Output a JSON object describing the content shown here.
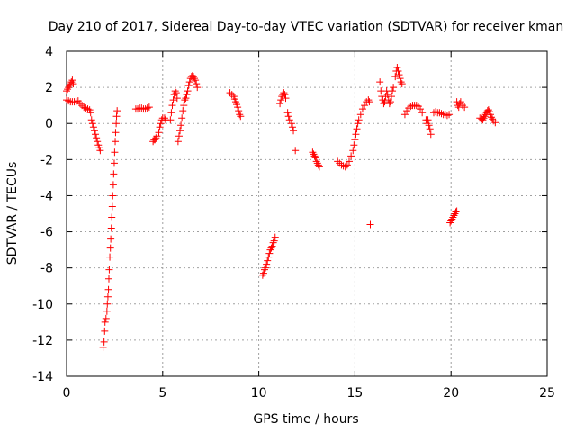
{
  "chart_data": {
    "type": "scatter",
    "title": "Day 210 of 2017, Sidereal Day-to-day VTEC variation (SDTVAR) for receiver kman",
    "xlabel": "GPS time / hours",
    "ylabel": "SDTVAR / TECUs",
    "xlim": [
      0,
      25
    ],
    "ylim": [
      -14,
      4
    ],
    "xticks": [
      0,
      5,
      10,
      15,
      20,
      25
    ],
    "yticks": [
      -14,
      -12,
      -10,
      -8,
      -6,
      -4,
      -2,
      0,
      2,
      4
    ],
    "grid": true,
    "marker": "+",
    "color": "#ff0000",
    "series": [
      {
        "name": "SDTVAR",
        "points": [
          [
            0.0,
            1.8
          ],
          [
            0.05,
            1.9
          ],
          [
            0.1,
            2.0
          ],
          [
            0.15,
            2.1
          ],
          [
            0.2,
            2.2
          ],
          [
            0.25,
            2.3
          ],
          [
            0.3,
            2.4
          ],
          [
            0.35,
            2.2
          ],
          [
            0.0,
            1.3
          ],
          [
            0.1,
            1.25
          ],
          [
            0.2,
            1.2
          ],
          [
            0.3,
            1.2
          ],
          [
            0.4,
            1.2
          ],
          [
            0.5,
            1.2
          ],
          [
            0.6,
            1.25
          ],
          [
            0.7,
            1.1
          ],
          [
            0.8,
            1.0
          ],
          [
            0.9,
            0.9
          ],
          [
            1.0,
            0.85
          ],
          [
            1.1,
            0.8
          ],
          [
            1.2,
            0.75
          ],
          [
            1.25,
            0.6
          ],
          [
            1.3,
            0.2
          ],
          [
            1.35,
            0.0
          ],
          [
            1.4,
            -0.2
          ],
          [
            1.45,
            -0.4
          ],
          [
            1.5,
            -0.6
          ],
          [
            1.55,
            -0.8
          ],
          [
            1.6,
            -1.0
          ],
          [
            1.65,
            -1.2
          ],
          [
            1.7,
            -1.35
          ],
          [
            1.75,
            -1.5
          ],
          [
            1.9,
            -12.4
          ],
          [
            1.95,
            -12.1
          ],
          [
            1.98,
            -11.5
          ],
          [
            2.0,
            -11.0
          ],
          [
            2.05,
            -10.8
          ],
          [
            2.1,
            -10.4
          ],
          [
            2.12,
            -10.0
          ],
          [
            2.15,
            -9.6
          ],
          [
            2.18,
            -9.2
          ],
          [
            2.2,
            -8.6
          ],
          [
            2.22,
            -8.1
          ],
          [
            2.25,
            -7.4
          ],
          [
            2.28,
            -6.9
          ],
          [
            2.3,
            -6.4
          ],
          [
            2.33,
            -5.8
          ],
          [
            2.35,
            -5.2
          ],
          [
            2.38,
            -4.6
          ],
          [
            2.4,
            -4.0
          ],
          [
            2.43,
            -3.4
          ],
          [
            2.45,
            -2.8
          ],
          [
            2.48,
            -2.2
          ],
          [
            2.5,
            -1.6
          ],
          [
            2.53,
            -1.0
          ],
          [
            2.55,
            -0.5
          ],
          [
            2.58,
            0.0
          ],
          [
            2.6,
            0.4
          ],
          [
            2.63,
            0.7
          ],
          [
            3.6,
            0.8
          ],
          [
            3.7,
            0.8
          ],
          [
            3.8,
            0.85
          ],
          [
            3.9,
            0.85
          ],
          [
            4.0,
            0.8
          ],
          [
            4.1,
            0.8
          ],
          [
            4.2,
            0.85
          ],
          [
            4.3,
            0.9
          ],
          [
            4.5,
            -1.0
          ],
          [
            4.55,
            -0.9
          ],
          [
            4.6,
            -0.9
          ],
          [
            4.65,
            -0.8
          ],
          [
            4.7,
            -0.7
          ],
          [
            4.8,
            -0.5
          ],
          [
            4.85,
            -0.2
          ],
          [
            4.9,
            0.0
          ],
          [
            4.95,
            0.2
          ],
          [
            5.0,
            0.3
          ],
          [
            5.1,
            0.3
          ],
          [
            5.15,
            0.2
          ],
          [
            5.4,
            0.2
          ],
          [
            5.45,
            0.6
          ],
          [
            5.5,
            1.0
          ],
          [
            5.55,
            1.3
          ],
          [
            5.6,
            1.6
          ],
          [
            5.65,
            1.8
          ],
          [
            5.7,
            1.7
          ],
          [
            5.75,
            1.4
          ],
          [
            5.8,
            -1.0
          ],
          [
            5.85,
            -0.7
          ],
          [
            5.9,
            -0.4
          ],
          [
            5.95,
            -0.1
          ],
          [
            6.0,
            0.3
          ],
          [
            6.05,
            0.7
          ],
          [
            6.1,
            1.0
          ],
          [
            6.15,
            1.3
          ],
          [
            6.2,
            1.4
          ],
          [
            6.25,
            1.6
          ],
          [
            6.3,
            1.8
          ],
          [
            6.35,
            2.1
          ],
          [
            6.4,
            2.3
          ],
          [
            6.45,
            2.5
          ],
          [
            6.5,
            2.6
          ],
          [
            6.55,
            2.65
          ],
          [
            6.6,
            2.6
          ],
          [
            6.65,
            2.5
          ],
          [
            6.7,
            2.4
          ],
          [
            6.75,
            2.2
          ],
          [
            6.8,
            2.0
          ],
          [
            8.5,
            1.7
          ],
          [
            8.6,
            1.6
          ],
          [
            8.7,
            1.5
          ],
          [
            8.75,
            1.35
          ],
          [
            8.8,
            1.2
          ],
          [
            8.85,
            1.05
          ],
          [
            8.9,
            0.9
          ],
          [
            8.95,
            0.7
          ],
          [
            9.0,
            0.5
          ],
          [
            9.05,
            0.4
          ],
          [
            10.2,
            -8.4
          ],
          [
            10.25,
            -8.3
          ],
          [
            10.3,
            -8.1
          ],
          [
            10.35,
            -8.0
          ],
          [
            10.4,
            -7.8
          ],
          [
            10.45,
            -7.6
          ],
          [
            10.5,
            -7.4
          ],
          [
            10.55,
            -7.2
          ],
          [
            10.6,
            -7.0
          ],
          [
            10.65,
            -6.9
          ],
          [
            10.7,
            -6.8
          ],
          [
            10.75,
            -6.6
          ],
          [
            10.8,
            -6.5
          ],
          [
            10.85,
            -6.3
          ],
          [
            11.1,
            1.1
          ],
          [
            11.15,
            1.3
          ],
          [
            11.2,
            1.5
          ],
          [
            11.25,
            1.6
          ],
          [
            11.3,
            1.7
          ],
          [
            11.35,
            1.6
          ],
          [
            11.4,
            1.4
          ],
          [
            11.5,
            0.6
          ],
          [
            11.55,
            0.4
          ],
          [
            11.6,
            0.2
          ],
          [
            11.7,
            0.0
          ],
          [
            11.75,
            -0.2
          ],
          [
            11.8,
            -0.4
          ],
          [
            11.9,
            -1.5
          ],
          [
            12.8,
            -1.6
          ],
          [
            12.85,
            -1.7
          ],
          [
            12.9,
            -1.8
          ],
          [
            12.95,
            -1.9
          ],
          [
            13.0,
            -2.1
          ],
          [
            13.05,
            -2.2
          ],
          [
            13.1,
            -2.3
          ],
          [
            13.15,
            -2.4
          ],
          [
            14.1,
            -2.1
          ],
          [
            14.2,
            -2.2
          ],
          [
            14.3,
            -2.3
          ],
          [
            14.4,
            -2.35
          ],
          [
            14.5,
            -2.4
          ],
          [
            14.6,
            -2.3
          ],
          [
            14.7,
            -2.1
          ],
          [
            14.8,
            -1.8
          ],
          [
            14.9,
            -1.5
          ],
          [
            14.95,
            -1.2
          ],
          [
            15.0,
            -0.9
          ],
          [
            15.05,
            -0.6
          ],
          [
            15.1,
            -0.3
          ],
          [
            15.15,
            0.0
          ],
          [
            15.2,
            0.2
          ],
          [
            15.3,
            0.5
          ],
          [
            15.4,
            0.8
          ],
          [
            15.5,
            1.0
          ],
          [
            15.6,
            1.2
          ],
          [
            15.7,
            1.3
          ],
          [
            15.75,
            1.2
          ],
          [
            15.8,
            -5.6
          ],
          [
            16.3,
            2.3
          ],
          [
            16.35,
            1.8
          ],
          [
            16.4,
            1.5
          ],
          [
            16.45,
            1.3
          ],
          [
            16.5,
            1.1
          ],
          [
            16.55,
            1.2
          ],
          [
            16.6,
            1.5
          ],
          [
            16.65,
            1.8
          ],
          [
            16.7,
            1.6
          ],
          [
            16.75,
            1.3
          ],
          [
            16.8,
            1.1
          ],
          [
            16.85,
            1.2
          ],
          [
            16.9,
            1.5
          ],
          [
            16.95,
            1.8
          ],
          [
            17.0,
            2.0
          ],
          [
            17.1,
            2.6
          ],
          [
            17.15,
            2.9
          ],
          [
            17.2,
            3.1
          ],
          [
            17.25,
            2.9
          ],
          [
            17.3,
            2.7
          ],
          [
            17.35,
            2.5
          ],
          [
            17.4,
            2.3
          ],
          [
            17.45,
            2.2
          ],
          [
            17.6,
            0.5
          ],
          [
            17.7,
            0.7
          ],
          [
            17.8,
            0.85
          ],
          [
            17.9,
            0.95
          ],
          [
            18.0,
            1.0
          ],
          [
            18.1,
            1.0
          ],
          [
            18.2,
            1.0
          ],
          [
            18.3,
            0.95
          ],
          [
            18.4,
            0.8
          ],
          [
            18.5,
            0.6
          ],
          [
            18.7,
            0.2
          ],
          [
            18.75,
            0.0
          ],
          [
            18.8,
            0.2
          ],
          [
            18.85,
            -0.1
          ],
          [
            18.9,
            -0.3
          ],
          [
            18.95,
            -0.6
          ],
          [
            19.1,
            0.6
          ],
          [
            19.2,
            0.65
          ],
          [
            19.3,
            0.6
          ],
          [
            19.4,
            0.6
          ],
          [
            19.5,
            0.55
          ],
          [
            19.6,
            0.5
          ],
          [
            19.7,
            0.5
          ],
          [
            19.8,
            0.45
          ],
          [
            19.9,
            0.5
          ],
          [
            19.95,
            -5.5
          ],
          [
            20.0,
            -5.4
          ],
          [
            20.05,
            -5.3
          ],
          [
            20.1,
            -5.2
          ],
          [
            20.15,
            -5.1
          ],
          [
            20.2,
            -5.0
          ],
          [
            20.25,
            -4.9
          ],
          [
            20.3,
            -4.85
          ],
          [
            20.3,
            1.2
          ],
          [
            20.35,
            1.0
          ],
          [
            20.4,
            0.9
          ],
          [
            20.45,
            1.1
          ],
          [
            20.5,
            1.2
          ],
          [
            20.6,
            1.0
          ],
          [
            20.7,
            0.9
          ],
          [
            21.5,
            0.3
          ],
          [
            21.6,
            0.25
          ],
          [
            21.65,
            0.2
          ],
          [
            21.7,
            0.3
          ],
          [
            21.75,
            0.4
          ],
          [
            21.8,
            0.5
          ],
          [
            21.85,
            0.6
          ],
          [
            21.9,
            0.7
          ],
          [
            21.95,
            0.75
          ],
          [
            22.0,
            0.65
          ],
          [
            22.05,
            0.5
          ],
          [
            22.1,
            0.35
          ],
          [
            22.15,
            0.25
          ],
          [
            22.2,
            0.15
          ],
          [
            22.3,
            0.05
          ]
        ]
      }
    ]
  }
}
